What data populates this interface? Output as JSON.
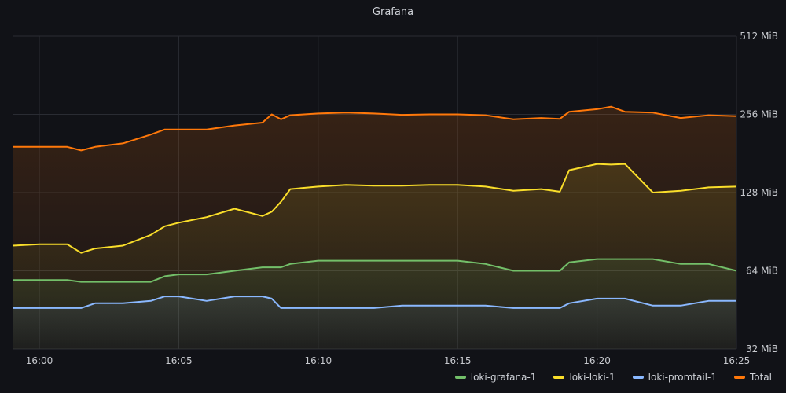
{
  "panel": {
    "title": "Grafana"
  },
  "chart_data": {
    "type": "area",
    "title": "Grafana",
    "xlabel": "",
    "ylabel": "",
    "y_scale": "log2",
    "ylim_mib": [
      32,
      512
    ],
    "y_ticks": [
      {
        "value": 32,
        "label": "32 MiB"
      },
      {
        "value": 64,
        "label": "64 MiB"
      },
      {
        "value": 128,
        "label": "128 MiB"
      },
      {
        "value": 256,
        "label": "256 MiB"
      },
      {
        "value": 512,
        "label": "512 MiB"
      }
    ],
    "xlim": [
      "15:59",
      "16:25"
    ],
    "x_ticks": [
      "16:00",
      "16:05",
      "16:10",
      "16:15",
      "16:20",
      "16:25"
    ],
    "grid": true,
    "legend_position": "bottom-right",
    "x": [
      "15:59",
      "16:00",
      "16:01",
      "16:01:30",
      "16:02",
      "16:03",
      "16:04",
      "16:04:30",
      "16:05",
      "16:06",
      "16:07",
      "16:08",
      "16:08:20",
      "16:08:40",
      "16:09",
      "16:10",
      "16:11",
      "16:12",
      "16:13",
      "16:14",
      "16:15",
      "16:16",
      "16:17",
      "16:18",
      "16:18:40",
      "16:19",
      "16:20",
      "16:20:30",
      "16:21",
      "16:22",
      "16:23",
      "16:24",
      "16:25"
    ],
    "series": [
      {
        "name": "loki-grafana-1",
        "color": "#73bf69",
        "values": [
          59,
          59,
          59,
          58,
          58,
          58,
          58,
          61,
          62,
          62,
          64,
          66,
          66,
          66,
          68,
          70,
          70,
          70,
          70,
          70,
          70,
          68,
          64,
          64,
          64,
          69,
          71,
          71,
          71,
          71,
          68,
          68,
          64
        ]
      },
      {
        "name": "loki-loki-1",
        "color": "#fade2a",
        "values": [
          80,
          81,
          81,
          75,
          78,
          80,
          88,
          95,
          98,
          103,
          111,
          104,
          108,
          118,
          132,
          135,
          137,
          136,
          136,
          137,
          137,
          135,
          130,
          132,
          129,
          156,
          165,
          164,
          165,
          128,
          130,
          134,
          135
        ]
      },
      {
        "name": "loki-promtail-1",
        "color": "#8ab8ff",
        "values": [
          46,
          46,
          46,
          46,
          48,
          48,
          49,
          51,
          51,
          49,
          51,
          51,
          50,
          46,
          46,
          46,
          46,
          46,
          47,
          47,
          47,
          47,
          46,
          46,
          46,
          48,
          50,
          50,
          50,
          47,
          47,
          49,
          49
        ]
      },
      {
        "name": "Total",
        "color": "#ff780a",
        "values": [
          192,
          192,
          192,
          186,
          192,
          198,
          214,
          224,
          224,
          224,
          232,
          238,
          256,
          245,
          254,
          258,
          260,
          258,
          255,
          256,
          256,
          254,
          245,
          248,
          246,
          262,
          268,
          274,
          262,
          260,
          248,
          254,
          252
        ]
      }
    ]
  }
}
